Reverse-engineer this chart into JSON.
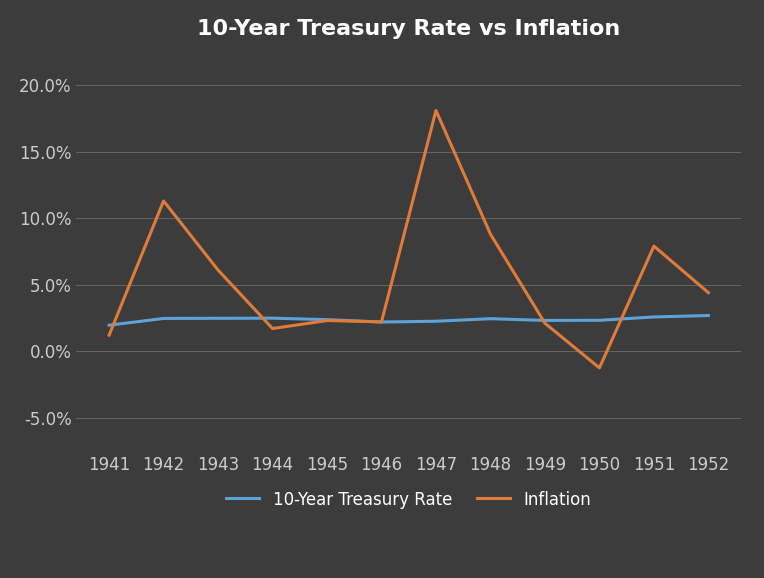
{
  "years": [
    1941,
    1942,
    1943,
    1944,
    1945,
    1946,
    1947,
    1948,
    1949,
    1950,
    1951,
    1952
  ],
  "treasury_rate": [
    1.95,
    2.46,
    2.47,
    2.48,
    2.37,
    2.19,
    2.25,
    2.44,
    2.31,
    2.32,
    2.57,
    2.68
  ],
  "inflation": [
    1.2,
    11.3,
    6.1,
    1.7,
    2.3,
    2.2,
    18.1,
    8.8,
    2.1,
    -1.26,
    7.9,
    4.4
  ],
  "treasury_color": "#5ba3d9",
  "inflation_color": "#e07b39",
  "title": "10-Year Treasury Rate vs Inflation",
  "title_fontsize": 16,
  "title_fontweight": "bold",
  "title_color": "#ffffff",
  "background_color": "#3c3c3c",
  "axes_background_color": "#3c3c3c",
  "tick_color": "#cccccc",
  "grid_color": "#888888",
  "legend_label_treasury": "10-Year Treasury Rate",
  "legend_label_inflation": "Inflation",
  "ylim": [
    -7.5,
    22.5
  ],
  "yticks": [
    -5.0,
    0.0,
    5.0,
    10.0,
    15.0,
    20.0
  ],
  "line_width": 2.2,
  "legend_text_color": "#ffffff",
  "legend_bg_color": "#3c3c3c",
  "tick_fontsize": 12
}
